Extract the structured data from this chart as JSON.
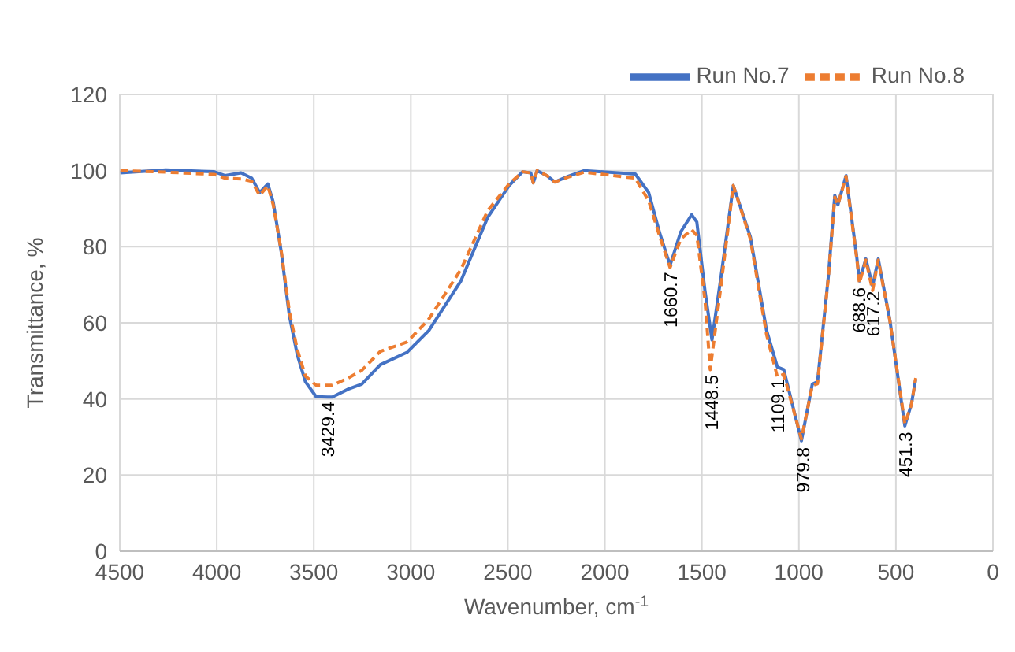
{
  "chart_data": {
    "type": "line",
    "xlabel": "Wavenumber, cm$^{-1}$",
    "ylabel": "Transmittance, %",
    "xlim": [
      4500,
      0
    ],
    "xticks": [
      4500,
      4000,
      3500,
      3000,
      2500,
      2000,
      1500,
      1000,
      500,
      0
    ],
    "ylim": [
      0,
      120
    ],
    "yticks": [
      0,
      20,
      40,
      60,
      80,
      100,
      120
    ],
    "grid": true,
    "legend": "top right",
    "marker": "none",
    "series": [
      {
        "name": "Run No.7",
        "color": "#4472c4",
        "line_style": "solid",
        "x": [
          4497,
          4262,
          4013,
          3958,
          3875,
          3820,
          3779,
          3737,
          3709,
          3668,
          3626,
          3585,
          3543,
          3488,
          3429,
          3405,
          3322,
          3253,
          3157,
          3018,
          2907,
          2742,
          2604,
          2493,
          2424,
          2382,
          2369,
          2349,
          2299,
          2258,
          2189,
          2106,
          1843,
          1774,
          1719,
          1664,
          1609,
          1553,
          1526,
          1484,
          1448,
          1401,
          1338,
          1250,
          1167,
          1111,
          1078,
          987,
          931,
          904,
          848,
          815,
          799,
          757,
          702,
          688,
          655,
          620,
          591,
          531,
          454,
          420,
          398
        ],
        "values": [
          99.4,
          100.2,
          99.7,
          98.7,
          99.4,
          98,
          94.2,
          96.5,
          91.7,
          78.7,
          61.9,
          51.6,
          44.5,
          40.6,
          40.5,
          40.5,
          42.6,
          43.9,
          49,
          52.3,
          58,
          71,
          87.7,
          96.1,
          99.7,
          99.4,
          96.8,
          100,
          98.7,
          97,
          98.5,
          100,
          99.1,
          94.2,
          83.9,
          75.1,
          83.9,
          88.4,
          86.5,
          68.4,
          55.5,
          72.3,
          96.1,
          82.6,
          58.1,
          48.4,
          47.7,
          29,
          43.9,
          44.5,
          72.3,
          93.5,
          91,
          98.7,
          77.4,
          71,
          76.8,
          69.7,
          76.8,
          60.7,
          32.9,
          38.7,
          45.2
        ]
      },
      {
        "name": "Run No.8",
        "color": "#ed7d31",
        "line_style": "dashed",
        "x": [
          4497,
          4262,
          4013,
          3958,
          3875,
          3820,
          3779,
          3737,
          3709,
          3668,
          3626,
          3585,
          3543,
          3488,
          3429,
          3405,
          3322,
          3253,
          3157,
          3018,
          2907,
          2742,
          2604,
          2493,
          2424,
          2382,
          2369,
          2349,
          2299,
          2258,
          2189,
          2106,
          1843,
          1774,
          1719,
          1664,
          1609,
          1553,
          1526,
          1484,
          1457,
          1401,
          1338,
          1250,
          1167,
          1111,
          1078,
          987,
          931,
          904,
          848,
          815,
          799,
          757,
          702,
          688,
          655,
          620,
          591,
          531,
          454,
          420,
          398
        ],
        "values": [
          100,
          99.6,
          99,
          98,
          97.8,
          97.2,
          93.5,
          96,
          91,
          79,
          63,
          53,
          46,
          43.6,
          43.6,
          43.6,
          45.5,
          47.5,
          52.5,
          55,
          61,
          74,
          89.5,
          96.5,
          99.7,
          99.4,
          96.8,
          100,
          98.7,
          97,
          98.3,
          99.6,
          98,
          92,
          83,
          74.5,
          82,
          84.5,
          83,
          66,
          47.7,
          70,
          96.1,
          82,
          57,
          45.8,
          46.5,
          29.5,
          43.5,
          44,
          72,
          93,
          91,
          98.5,
          77,
          70.5,
          76.5,
          68.5,
          76.5,
          60.5,
          33.5,
          38.5,
          45.5
        ]
      }
    ],
    "annotations": [
      {
        "text": "3429.4",
        "x": 3429.4,
        "y": 41
      },
      {
        "text": "1660.7",
        "x": 1660.7,
        "y": 75
      },
      {
        "text": "1448.5",
        "x": 1448.5,
        "y": 48
      },
      {
        "text": "1109.1",
        "x": 1109.1,
        "y": 47
      },
      {
        "text": "979.8",
        "x": 979.8,
        "y": 29
      },
      {
        "text": "688.6",
        "x": 688.6,
        "y": 71
      },
      {
        "text": "617.2",
        "x": 617.2,
        "y": 70
      },
      {
        "text": "451.3",
        "x": 451.3,
        "y": 33
      }
    ]
  }
}
